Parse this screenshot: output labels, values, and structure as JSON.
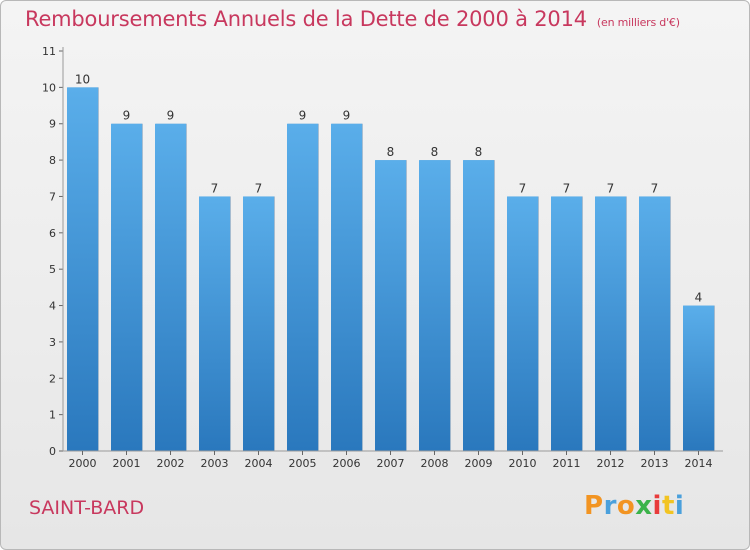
{
  "chart_data": {
    "type": "bar",
    "title": "Remboursements Annuels de la Dette de 2000 à 2014",
    "subtitle": "(en milliers d'€)",
    "categories": [
      "2000",
      "2001",
      "2002",
      "2003",
      "2004",
      "2005",
      "2006",
      "2007",
      "2008",
      "2009",
      "2010",
      "2011",
      "2012",
      "2013",
      "2014"
    ],
    "values": [
      10,
      9,
      9,
      7,
      7,
      9,
      9,
      8,
      8,
      8,
      7,
      7,
      7,
      7,
      4
    ],
    "yticks": [
      0,
      1,
      2,
      3,
      4,
      5,
      6,
      7,
      8,
      9,
      10,
      11
    ],
    "ylim": [
      0,
      11
    ],
    "xlabel": "",
    "ylabel": "",
    "bar_color_top": "#5aaeea",
    "bar_color_bottom": "#2a78bd"
  },
  "footer": {
    "commune": "SAINT-BARD",
    "logo_letters": [
      "P",
      "r",
      "o",
      "x",
      "i",
      "t",
      "i"
    ],
    "logo_colors": [
      "#f29422",
      "#4aa0dc",
      "#f29422",
      "#3bb34a",
      "#e83b3b",
      "#f2c422",
      "#4aa0dc"
    ]
  },
  "colors": {
    "accent": "#c8385e"
  }
}
